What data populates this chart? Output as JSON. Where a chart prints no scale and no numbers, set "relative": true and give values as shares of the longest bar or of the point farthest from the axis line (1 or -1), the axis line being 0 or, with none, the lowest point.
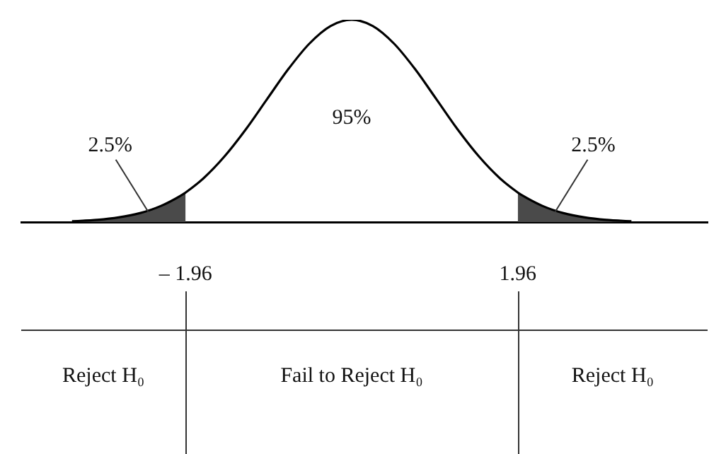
{
  "chart_data": {
    "type": "line",
    "relative": true,
    "grid": false,
    "legend": false,
    "marker": "none",
    "tick_labels": "x",
    "xlim": [
      -3.9,
      4.2
    ],
    "xticks": [
      {
        "value": -1.96,
        "label": "– 1.96"
      },
      1.96
    ],
    "series": [
      {
        "color": "#000000",
        "x": [
          -3.3,
          -3,
          -2.75,
          -2.5,
          -2.25,
          -2,
          -1.96,
          -1.75,
          -1.5,
          -1.25,
          -1,
          -0.75,
          -0.5,
          -0.25,
          0,
          0.25,
          0.5,
          0.75,
          1,
          1.25,
          1.5,
          1.75,
          1.96,
          2,
          2.25,
          2.5,
          2.75,
          3,
          3.3
        ],
        "values": [
          0.004,
          0.011,
          0.023,
          0.044,
          0.08,
          0.135,
          0.146,
          0.216,
          0.325,
          0.458,
          0.607,
          0.755,
          0.882,
          0.969,
          1,
          0.969,
          0.882,
          0.755,
          0.607,
          0.458,
          0.325,
          0.216,
          0.146,
          0.135,
          0.08,
          0.044,
          0.023,
          0.011,
          0.004
        ]
      },
      {
        "type": "area",
        "color": "#4a4a4a",
        "x": [
          -3.3,
          -3,
          -2.75,
          -2.5,
          -2.25,
          -2,
          -1.96
        ],
        "values": [
          0.004,
          0.011,
          0.023,
          0.044,
          0.08,
          0.135,
          0.146
        ]
      },
      {
        "type": "area",
        "color": "#4a4a4a",
        "x": [
          1.96,
          2,
          2.25,
          2.5,
          2.75,
          3,
          3.3
        ],
        "values": [
          0.146,
          0.135,
          0.08,
          0.044,
          0.023,
          0.011,
          0.004
        ]
      }
    ],
    "annotations": [
      {
        "text": "2.5%",
        "x": -2.4,
        "y": 0.05
      },
      "95%",
      {
        "text": "2.5%",
        "x": 2.4,
        "y": 0.05
      },
      "Reject H₀",
      "Fail to Reject H₀",
      "Reject H₀"
    ]
  }
}
